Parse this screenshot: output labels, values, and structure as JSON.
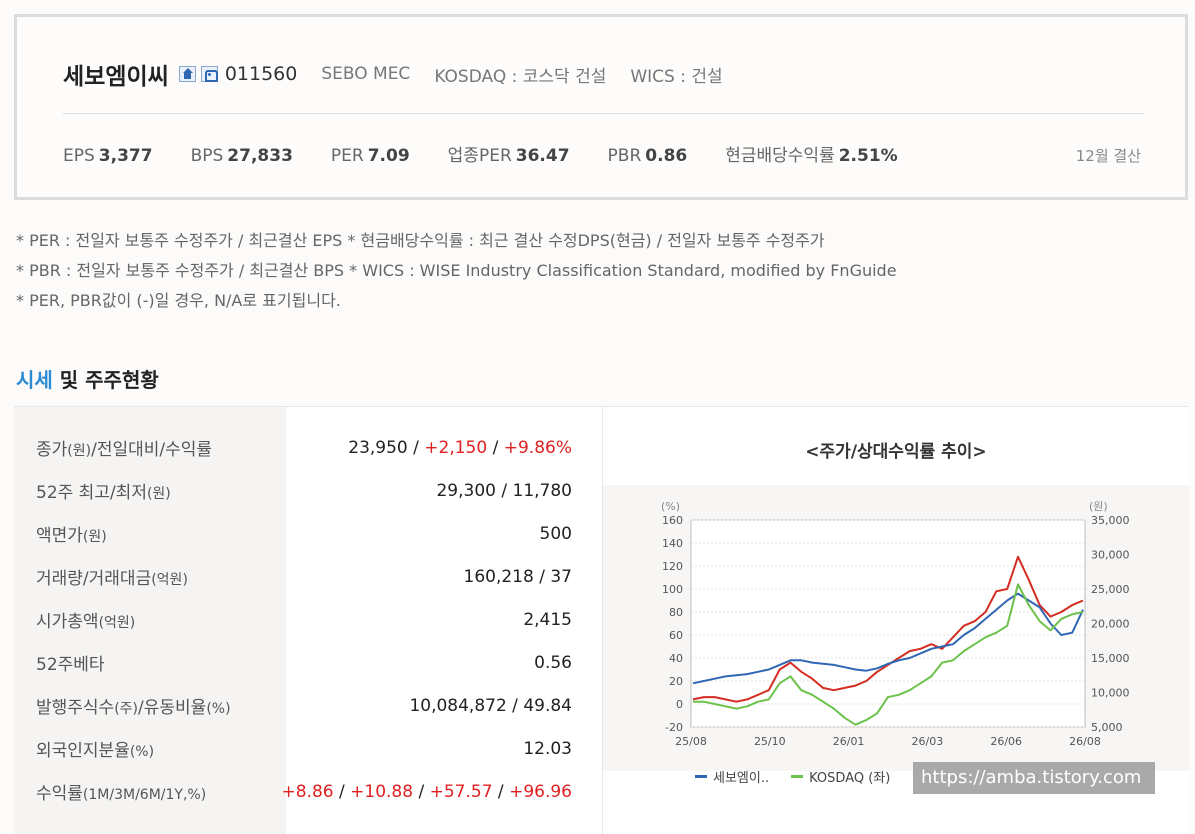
{
  "corp": {
    "name": "세보엠이씨",
    "code": "011560",
    "eng_name": "SEBO MEC",
    "market": "KOSDAQ : 코스닥 건설",
    "wics": "WICS : 건설",
    "icons": [
      "home-icon",
      "phone-icon"
    ]
  },
  "ratios": [
    {
      "label": "EPS",
      "value": "3,377"
    },
    {
      "label": "BPS",
      "value": "27,833"
    },
    {
      "label": "PER",
      "value": "7.09"
    },
    {
      "label": "업종PER",
      "value": "36.47"
    },
    {
      "label": "PBR",
      "value": "0.86"
    },
    {
      "label": "현금배당수익률",
      "value": "2.51%"
    }
  ],
  "settlement": "12월 결산",
  "notes": [
    "* PER : 전일자 보통주 수정주가 / 최근결산 EPS * 현금배당수익률 : 최근 결산 수정DPS(현금) / 전일자 보통주 수정주가",
    "* PBR : 전일자 보통주 수정주가 / 최근결산 BPS * WICS : WISE Industry Classification Standard, modified by FnGuide",
    "* PER, PBR값이 (-)일 경우, N/A로 표기됩니다."
  ],
  "section": {
    "title_highlight": "시세",
    "title_rest": " 및 주주현황"
  },
  "stats": [
    {
      "label": "종가",
      "unit": "(원)",
      "label2": "/전일대비/수익률",
      "values": [
        {
          "t": "23,950",
          "red": false
        },
        {
          "t": "+2,150",
          "red": true
        },
        {
          "t": "+9.86%",
          "red": true
        }
      ]
    },
    {
      "label": "52주 최고/최저",
      "unit": "(원)",
      "label2": "",
      "values": [
        {
          "t": "29,300",
          "red": false
        },
        {
          "t": "11,780",
          "red": false
        }
      ]
    },
    {
      "label": "액면가",
      "unit": "(원)",
      "label2": "",
      "values": [
        {
          "t": "500",
          "red": false
        }
      ]
    },
    {
      "label": "거래량/거래대금",
      "unit": "(억원)",
      "label2": "",
      "values": [
        {
          "t": "160,218",
          "red": false
        },
        {
          "t": "37",
          "red": false
        }
      ]
    },
    {
      "label": "시가총액",
      "unit": "(억원)",
      "label2": "",
      "values": [
        {
          "t": "2,415",
          "red": false
        }
      ]
    },
    {
      "label": "52주베타",
      "unit": "",
      "label2": "",
      "values": [
        {
          "t": "0.56",
          "red": false
        }
      ]
    },
    {
      "label": "발행주식수",
      "unit": "(주)",
      "label2": "/유동비율",
      "unit2": "(%)",
      "values": [
        {
          "t": "10,084,872",
          "red": false
        },
        {
          "t": "49.84",
          "red": false
        }
      ]
    },
    {
      "label": "외국인지분율",
      "unit": "(%)",
      "label2": "",
      "values": [
        {
          "t": "12.03",
          "red": false
        }
      ]
    },
    {
      "label": "수익률",
      "unit": "(1M/3M/6M/1Y,%)",
      "label2": "",
      "values": [
        {
          "t": "+8.86",
          "red": true
        },
        {
          "t": "+10.88",
          "red": true
        },
        {
          "t": "+57.57",
          "red": true
        },
        {
          "t": "+96.96",
          "red": true
        }
      ]
    }
  ],
  "chart_data": {
    "type": "line",
    "title": "<주가/상대수익률 추이>",
    "left_axis": {
      "unit": "(%)",
      "range": [
        -20,
        160
      ],
      "ticks": [
        160,
        140,
        120,
        100,
        80,
        60,
        40,
        20,
        0,
        -20
      ]
    },
    "right_axis": {
      "unit": "(원)",
      "range": [
        5000,
        35000
      ],
      "ticks": [
        "35,000",
        "30,000",
        "25,000",
        "20,000",
        "15,000",
        "10,000",
        "5,000"
      ]
    },
    "x_ticks": [
      "25/08",
      "25/10",
      "26/01",
      "26/03",
      "26/06",
      "26/08"
    ],
    "grid": true,
    "legend": "bottom",
    "series": [
      {
        "name": "세보엠이..",
        "color": "#2f67b5",
        "axis": "left",
        "values": [
          18,
          20,
          22,
          24,
          25,
          26,
          28,
          30,
          34,
          38,
          38,
          36,
          35,
          34,
          32,
          30,
          29,
          31,
          35,
          38,
          40,
          44,
          48,
          50,
          52,
          60,
          66,
          74,
          82,
          90,
          96,
          90,
          84,
          70,
          60,
          62,
          82
        ]
      },
      {
        "name": "KOSDAQ (좌)",
        "color": "#6cc24a",
        "axis": "left",
        "values": [
          2,
          2,
          0,
          -2,
          -4,
          -2,
          2,
          4,
          18,
          24,
          12,
          8,
          2,
          -4,
          -12,
          -18,
          -14,
          -8,
          6,
          8,
          12,
          18,
          24,
          36,
          38,
          46,
          52,
          58,
          62,
          68,
          104,
          86,
          72,
          64,
          74,
          78,
          80
        ]
      },
      {
        "name": "",
        "color": "#d42d22",
        "axis": "left",
        "values": [
          4,
          6,
          6,
          4,
          2,
          4,
          8,
          12,
          30,
          36,
          28,
          22,
          14,
          12,
          14,
          16,
          20,
          28,
          34,
          40,
          46,
          48,
          52,
          48,
          58,
          68,
          72,
          80,
          98,
          100,
          128,
          108,
          86,
          76,
          80,
          86,
          90
        ]
      }
    ]
  },
  "watermark": "https://amba.tistory.com"
}
